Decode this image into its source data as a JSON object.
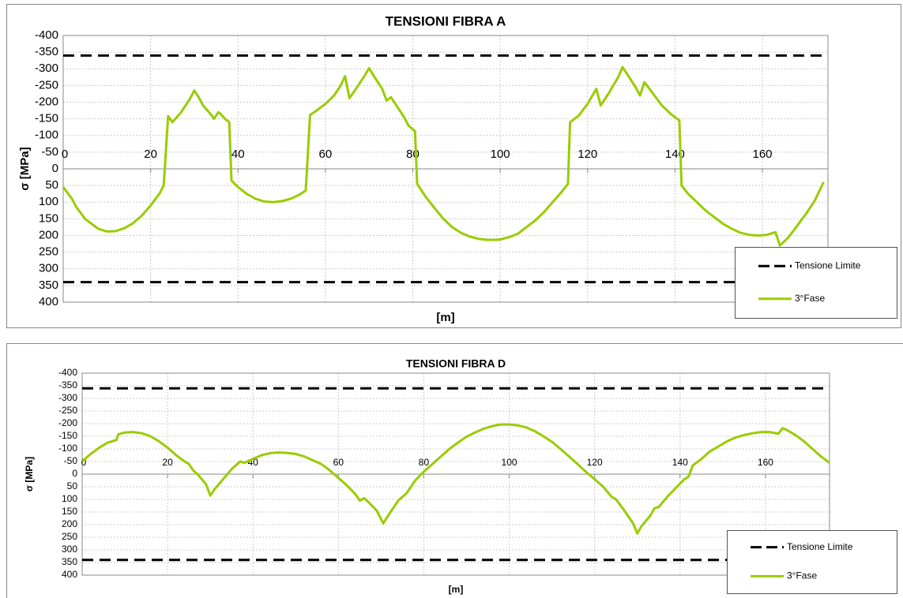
{
  "chart_data": [
    {
      "type": "line",
      "title": "TENSIONI FIBRA A",
      "x_label": "[m]",
      "y_label": "σ [MPa]",
      "xlim": [
        0,
        175
      ],
      "xticks": [
        0,
        20,
        40,
        60,
        80,
        100,
        120,
        140,
        160
      ],
      "ylim": [
        -400,
        400
      ],
      "yticks": [
        -400,
        -350,
        -300,
        -250,
        -200,
        -150,
        -100,
        -50,
        0,
        50,
        100,
        150,
        200,
        250,
        300,
        350,
        400
      ],
      "y_inverted": true,
      "grid": true,
      "legend": "bottom-right",
      "series": [
        {
          "name": "Tensione Limite",
          "color": "#000000",
          "style": "hline",
          "values": [
            -340,
            340
          ]
        },
        {
          "name": "3°Fase",
          "color": "#99cc00",
          "x": [
            0,
            2,
            3,
            5,
            8,
            10,
            12,
            14,
            16,
            18,
            20,
            22,
            23,
            24,
            25,
            27,
            29,
            30,
            31,
            32,
            34,
            34.5,
            35.5,
            36,
            37,
            38,
            38.5,
            40,
            42,
            44,
            46,
            48,
            50,
            52,
            54,
            55.5,
            56.5,
            58,
            60,
            62,
            63.5,
            64.5,
            65.5,
            67,
            69,
            70,
            71,
            73,
            74,
            75,
            76,
            78,
            79,
            80.5,
            81,
            83,
            85,
            87,
            89,
            91,
            93,
            95,
            97,
            99,
            100,
            102,
            104,
            106,
            108,
            110,
            112,
            114,
            115.5,
            116,
            118,
            120,
            122,
            123,
            125,
            127,
            128,
            129,
            131,
            132,
            133,
            135,
            137,
            139,
            141,
            141.5,
            143,
            145,
            147,
            149,
            151,
            153,
            155,
            157,
            159,
            161,
            163,
            164,
            166,
            168,
            170,
            172,
            174
          ],
          "values": [
            55,
            90,
            115,
            150,
            180,
            188,
            187,
            178,
            163,
            140,
            110,
            75,
            50,
            -158,
            -140,
            -170,
            -210,
            -235,
            -215,
            -190,
            -160,
            -150,
            -170,
            -165,
            -150,
            -140,
            35,
            55,
            75,
            90,
            98,
            100,
            97,
            90,
            78,
            65,
            -162,
            -175,
            -195,
            -220,
            -250,
            -278,
            -212,
            -240,
            -280,
            -302,
            -280,
            -240,
            -205,
            -215,
            -195,
            -155,
            -130,
            -113,
            45,
            85,
            118,
            150,
            175,
            192,
            203,
            210,
            213,
            213,
            212,
            205,
            195,
            175,
            155,
            130,
            100,
            70,
            45,
            -140,
            -160,
            -195,
            -240,
            -190,
            -230,
            -275,
            -305,
            -285,
            -245,
            -220,
            -260,
            -225,
            -190,
            -165,
            -145,
            50,
            75,
            100,
            125,
            145,
            165,
            180,
            192,
            198,
            200,
            198,
            190,
            230,
            205,
            170,
            135,
            95,
            40
          ]
        }
      ]
    },
    {
      "type": "line",
      "title": "TENSIONI FIBRA D",
      "x_label": "[m]",
      "y_label": "σ [MPa]",
      "xlim": [
        0,
        175
      ],
      "xticks": [
        0,
        20,
        40,
        60,
        80,
        100,
        120,
        140,
        160
      ],
      "ylim": [
        -400,
        400
      ],
      "yticks": [
        -400,
        -350,
        -300,
        -250,
        -200,
        -150,
        -100,
        -50,
        0,
        50,
        100,
        150,
        200,
        250,
        300,
        350,
        400
      ],
      "y_inverted": true,
      "grid": true,
      "legend": "bottom-right",
      "series": [
        {
          "name": "Tensione Limite",
          "color": "#000000",
          "style": "hline",
          "values": [
            -340,
            340
          ]
        },
        {
          "name": "3°Fase",
          "color": "#99cc00",
          "x": [
            0,
            2,
            4,
            6,
            8,
            8.5,
            10,
            12,
            14,
            16,
            18,
            20,
            22,
            24,
            25,
            26,
            27,
            29,
            30,
            31,
            33,
            35,
            37,
            38,
            40,
            42,
            44,
            46,
            48,
            50,
            52,
            54,
            56,
            58,
            60,
            62,
            64,
            65,
            66,
            67,
            69,
            70.5,
            72,
            74,
            76,
            78,
            80,
            82,
            84,
            86,
            88,
            90,
            92,
            94,
            96,
            98,
            100,
            102,
            104,
            106,
            108,
            110,
            112,
            114,
            116,
            118,
            120,
            122,
            124,
            125,
            127,
            129,
            130,
            131,
            133,
            134,
            135,
            137,
            139,
            141,
            142,
            143,
            145,
            147,
            149,
            151,
            153,
            155,
            157,
            159,
            161,
            163,
            164,
            165,
            167,
            169,
            171,
            173,
            175
          ],
          "values": [
            -50,
            -80,
            -105,
            -125,
            -135,
            -158,
            -165,
            -167,
            -162,
            -150,
            -130,
            -105,
            -75,
            -50,
            -40,
            -15,
            0,
            40,
            85,
            60,
            20,
            -20,
            -50,
            -45,
            -60,
            -75,
            -83,
            -86,
            -84,
            -80,
            -70,
            -55,
            -40,
            -15,
            15,
            45,
            80,
            105,
            95,
            110,
            145,
            195,
            155,
            105,
            75,
            25,
            -10,
            -40,
            -70,
            -100,
            -125,
            -148,
            -165,
            -180,
            -190,
            -197,
            -197,
            -193,
            -185,
            -170,
            -150,
            -128,
            -100,
            -70,
            -40,
            -8,
            20,
            50,
            90,
            100,
            145,
            195,
            235,
            205,
            165,
            135,
            130,
            90,
            55,
            20,
            10,
            -35,
            -60,
            -90,
            -110,
            -130,
            -145,
            -155,
            -162,
            -167,
            -167,
            -160,
            -182,
            -175,
            -155,
            -130,
            -100,
            -70,
            -45
          ]
        }
      ]
    }
  ]
}
